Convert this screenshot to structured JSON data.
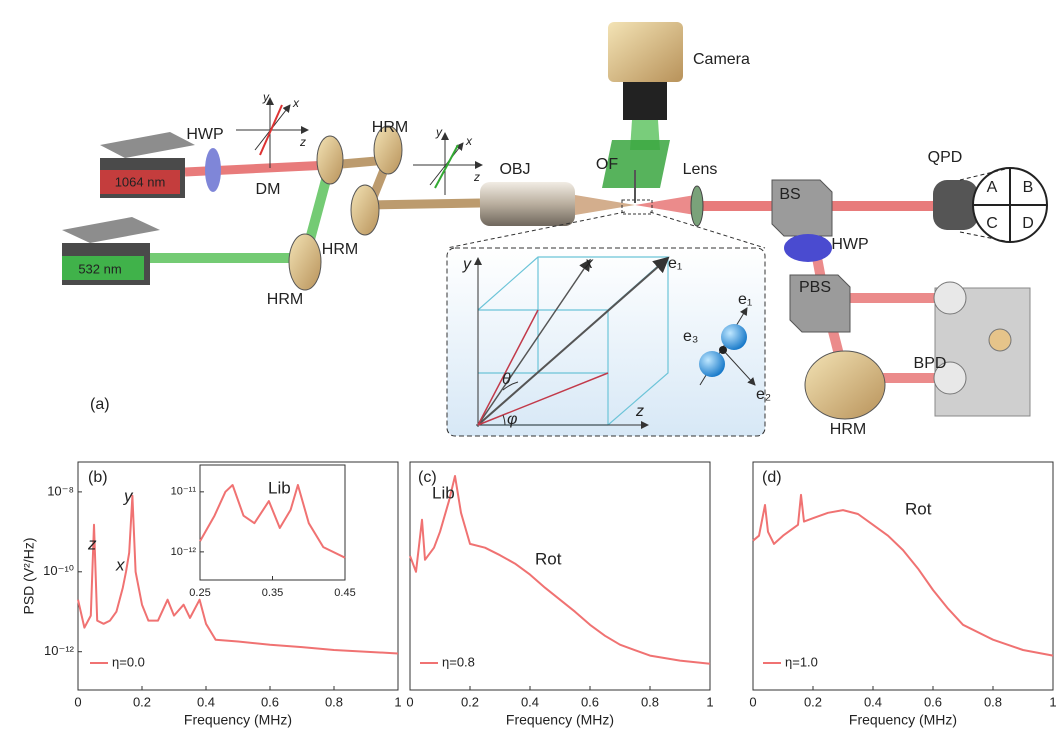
{
  "diagram": {
    "panel_label": "(a)",
    "laser_1064": "1064 nm",
    "laser_532": "532 nm",
    "hwp_1": "HWP",
    "dm": "DM",
    "hrm_1": "HRM",
    "hrm_2": "HRM",
    "hrm_3": "HRM",
    "hrm_4": "HRM",
    "obj": "OBJ",
    "of": "OF",
    "lens": "Lens",
    "camera": "Camera",
    "bs": "BS",
    "hwp_2": "HWP",
    "pbs": "PBS",
    "bpd": "BPD",
    "qpd": "QPD",
    "quadrants": [
      "A",
      "B",
      "C",
      "D"
    ],
    "axes_1": [
      "y",
      "x",
      "z"
    ],
    "axes_2": [
      "y",
      "x",
      "z"
    ],
    "inset": {
      "y": "y",
      "x": "x",
      "z": "z",
      "e1": "e₁",
      "e1_body": "e₁",
      "e2": "e₂",
      "e3": "e₃",
      "theta": "θ",
      "phi": "φ"
    }
  },
  "chart_data": [
    {
      "type": "line",
      "panel_label": "(b)",
      "ylabel": "PSD (V²/Hz)",
      "xlabel": "Frequency (MHz)",
      "log_y": true,
      "xlim": [
        0,
        1
      ],
      "ylim": [
        1.1e-13,
        5.6e-08
      ],
      "xticks": [
        0,
        0.2,
        0.4,
        0.6,
        0.8,
        1
      ],
      "yticks": [
        {
          "value": 1e-08,
          "label": "10⁻⁸"
        },
        {
          "value": 1e-10,
          "label": "10⁻¹⁰"
        },
        {
          "value": 1e-12,
          "label": "10⁻¹²"
        }
      ],
      "annotations": [
        "z",
        "x",
        "y"
      ],
      "x": [
        0,
        0.02,
        0.04,
        0.05,
        0.06,
        0.08,
        0.1,
        0.12,
        0.14,
        0.15,
        0.16,
        0.17,
        0.18,
        0.2,
        0.22,
        0.25,
        0.28,
        0.3,
        0.33,
        0.35,
        0.38,
        0.4,
        0.43,
        0.5,
        0.6,
        0.7,
        0.8,
        0.9,
        1.0
      ],
      "series": [
        {
          "name": "η=0.0",
          "color": "#f07272",
          "values": [
            2e-11,
            4e-12,
            8e-12,
            1.5e-09,
            6e-12,
            5e-12,
            6e-12,
            1e-11,
            4e-11,
            1e-10,
            3e-10,
            8e-09,
            1e-10,
            1.5e-11,
            6e-12,
            6e-12,
            2e-11,
            8e-12,
            1.5e-11,
            7e-12,
            2e-11,
            5e-12,
            2e-12,
            1.8e-12,
            1.5e-12,
            1.3e-12,
            1.1e-12,
            1e-12,
            9e-13
          ]
        }
      ]
    },
    {
      "type": "line",
      "log_y": true,
      "xlim": [
        0.25,
        0.45
      ],
      "ylim": [
        3.4e-13,
        2.8e-11
      ],
      "xticks": [
        0.25,
        0.35,
        0.45
      ],
      "yticks": [
        {
          "value": 1e-11,
          "label": "10⁻¹¹"
        },
        {
          "value": 1e-12,
          "label": "10⁻¹²"
        }
      ],
      "annotations": [
        "Lib"
      ],
      "x": [
        0.25,
        0.27,
        0.285,
        0.295,
        0.31,
        0.325,
        0.345,
        0.36,
        0.375,
        0.385,
        0.4,
        0.42,
        0.45
      ],
      "series": [
        {
          "color": "#f07272",
          "values": [
            1.5e-12,
            4e-12,
            1e-11,
            1.3e-11,
            4e-12,
            3e-12,
            7e-12,
            2.5e-12,
            5e-12,
            1.3e-11,
            3e-12,
            1.2e-12,
            8e-13
          ]
        }
      ]
    },
    {
      "type": "line",
      "panel_label": "(c)",
      "xlabel": "Frequency (MHz)",
      "log_y": true,
      "xlim": [
        0,
        1
      ],
      "ylim": [
        1.1e-13,
        5.6e-08
      ],
      "xticks": [
        0,
        0.2,
        0.4,
        0.6,
        0.8,
        1
      ],
      "annotations": [
        "Lib",
        "Rot"
      ],
      "x": [
        0,
        0.02,
        0.04,
        0.05,
        0.08,
        0.1,
        0.13,
        0.15,
        0.17,
        0.2,
        0.25,
        0.3,
        0.35,
        0.4,
        0.45,
        0.5,
        0.55,
        0.6,
        0.65,
        0.7,
        0.8,
        0.9,
        1.0
      ],
      "series": [
        {
          "name": "η=0.8",
          "color": "#f07272",
          "values": [
            2.5e-10,
            1e-10,
            2e-09,
            2e-10,
            4e-10,
            1e-09,
            6e-09,
            2.5e-08,
            3e-09,
            5e-10,
            4e-10,
            2.6e-10,
            1.6e-10,
            8.5e-11,
            4e-11,
            2e-11,
            1e-11,
            4.7e-12,
            2.5e-12,
            1.5e-12,
            8e-13,
            6e-13,
            5e-13
          ]
        }
      ]
    },
    {
      "type": "line",
      "panel_label": "(d)",
      "xlabel": "Frequency (MHz)",
      "log_y": true,
      "xlim": [
        0,
        1
      ],
      "ylim": [
        1.1e-13,
        5.6e-08
      ],
      "xticks": [
        0,
        0.2,
        0.4,
        0.6,
        0.8,
        1
      ],
      "annotations": [
        "Rot"
      ],
      "x": [
        0,
        0.02,
        0.04,
        0.05,
        0.07,
        0.1,
        0.15,
        0.16,
        0.17,
        0.2,
        0.25,
        0.3,
        0.35,
        0.4,
        0.45,
        0.5,
        0.55,
        0.6,
        0.65,
        0.7,
        0.8,
        0.9,
        1.0
      ],
      "series": [
        {
          "name": "η=1.0",
          "color": "#f07272",
          "values": [
            6e-10,
            8e-10,
            4.7e-09,
            1e-09,
            5e-10,
            8e-10,
            1.5e-09,
            8.4e-09,
            1.8e-09,
            2.2e-09,
            3e-09,
            3.5e-09,
            2.8e-09,
            1.5e-09,
            8e-10,
            3.5e-10,
            1.2e-10,
            3.5e-11,
            1.2e-11,
            4.7e-12,
            2e-12,
            1.1e-12,
            8e-13
          ]
        }
      ]
    }
  ]
}
